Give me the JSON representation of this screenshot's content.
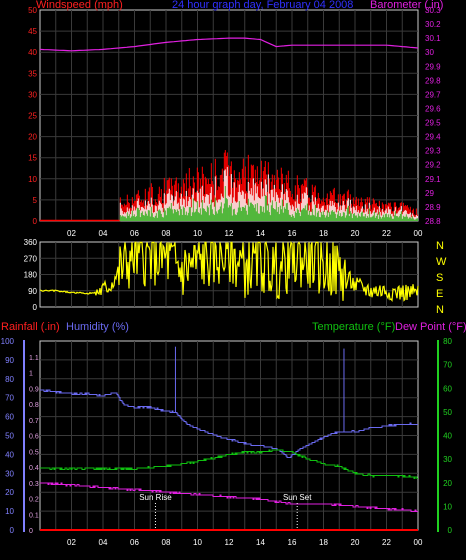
{
  "header": {
    "left_label": "Windspeed (mph)",
    "center_label": "24 hour graph day,  February 04 2008",
    "right_label": "Barometer (.in)"
  },
  "middle": {
    "compass": [
      "N",
      "W",
      "S",
      "E",
      "N"
    ]
  },
  "bottom": {
    "rainfall_label": "Rainfall (.in)",
    "humidity_label": "Humidity (%)",
    "temperature_label": "Temperature (°F)",
    "dewpoint_label": "Dew Point (°F)",
    "sunrise_label": "Sun Rise",
    "sunset_label": "Sun Set"
  },
  "colors": {
    "wind_red": "#ff0000",
    "wind_gust": "#ffffff",
    "wind_avg": "#20c020",
    "barometer": "#e020e0",
    "direction": "#ffff00",
    "rainfall": "#ff0000",
    "humidity": "#6a6af0",
    "temperature": "#10c010",
    "dewpoint": "#e020e0",
    "title_blue": "#3030ff",
    "grid": "#3a3a3a",
    "axis_left": "#8080ff",
    "axis_right_green": "#20d020",
    "sun_marker": "#ffffff"
  },
  "chart_data": [
    {
      "type": "area",
      "title": "Windspeed (mph)",
      "xlabel": "",
      "ylabel": "Windspeed (mph)",
      "xlim": [
        0,
        24
      ],
      "x_ticks": [
        "02",
        "04",
        "06",
        "08",
        "10",
        "12",
        "14",
        "16",
        "18",
        "20",
        "22",
        "00"
      ],
      "ylim": [
        0,
        50
      ],
      "y_ticks": [
        0,
        5,
        10,
        15,
        20,
        25,
        30,
        35,
        40,
        45,
        50
      ],
      "grid": true,
      "series": [
        {
          "name": "Windspeed (mph)",
          "x": [
            0,
            5,
            5.1,
            6,
            7,
            8,
            9,
            10,
            11,
            12,
            13,
            14,
            15,
            16,
            17,
            18,
            19,
            20,
            21,
            22,
            23,
            24
          ],
          "values": [
            0,
            0,
            4,
            5,
            6,
            7,
            8,
            9,
            10,
            12,
            11,
            10,
            9,
            8,
            7,
            6,
            5,
            5,
            4,
            3,
            3,
            2
          ]
        }
      ]
    },
    {
      "type": "line",
      "title": "Barometer (.in)",
      "ylabel": "Barometer (.in)",
      "xlim": [
        0,
        24
      ],
      "ylim": [
        28.8,
        30.3
      ],
      "y_ticks": [
        28.8,
        28.9,
        29.0,
        29.1,
        29.2,
        29.3,
        29.4,
        29.5,
        29.6,
        29.7,
        29.8,
        29.9,
        30.0,
        30.1,
        30.2,
        30.3
      ],
      "series": [
        {
          "name": "Barometer (.in)",
          "x": [
            0,
            2,
            4,
            6,
            8,
            9,
            10,
            12,
            13,
            14,
            15,
            16,
            18,
            20,
            22,
            24
          ],
          "values": [
            30.02,
            30.01,
            30.02,
            30.04,
            30.07,
            30.08,
            30.09,
            30.1,
            30.1,
            30.09,
            30.04,
            30.05,
            30.05,
            30.05,
            30.05,
            30.03
          ]
        }
      ]
    },
    {
      "type": "line",
      "title": "Wind Direction",
      "xlim": [
        0,
        24
      ],
      "ylim": [
        0,
        360
      ],
      "y_ticks": [
        0,
        90,
        180,
        270,
        360
      ],
      "series": [
        {
          "name": "Wind Direction",
          "x": [
            0,
            1,
            2,
            3,
            3.5,
            4,
            4.5,
            5,
            6,
            7,
            8,
            9,
            10,
            11,
            12,
            13,
            14,
            15,
            16,
            17,
            18,
            19,
            20,
            21,
            22,
            23,
            24
          ],
          "values": [
            90,
            90,
            80,
            75,
            80,
            95,
            120,
            200,
            290,
            280,
            270,
            200,
            250,
            270,
            300,
            220,
            250,
            200,
            260,
            270,
            230,
            200,
            120,
            90,
            90,
            80,
            80
          ]
        }
      ]
    },
    {
      "type": "line",
      "title": "",
      "xlabel": "",
      "xlim": [
        0,
        24
      ],
      "x_ticks": [
        "02",
        "04",
        "06",
        "08",
        "10",
        "12",
        "14",
        "16",
        "18",
        "20",
        "22",
        "00"
      ],
      "grid": true,
      "axes": {
        "rainfall": {
          "label": "Rainfall (.in)",
          "ylim": [
            0,
            1.2
          ],
          "ticks": [
            0,
            0.1,
            0.2,
            0.3,
            0.4,
            0.5,
            0.6,
            0.7,
            0.8,
            0.9,
            1.0,
            1.1
          ]
        },
        "humidity": {
          "label": "Humidity (%)",
          "ylim": [
            0,
            100
          ],
          "ticks": [
            0,
            10,
            20,
            30,
            40,
            50,
            60,
            70,
            80,
            90,
            100
          ]
        },
        "temperature": {
          "label": "Temperature (°F)",
          "ylim": [
            0,
            80
          ],
          "ticks": [
            0,
            10,
            20,
            30,
            40,
            50,
            60,
            70,
            80
          ]
        }
      },
      "series": [
        {
          "name": "Humidity (%)",
          "axis": "humidity",
          "x": [
            0,
            1,
            2,
            3,
            4,
            4.8,
            5.3,
            6,
            7,
            7.5,
            8,
            8.6,
            9.5,
            10.5,
            11.5,
            12.5,
            13.5,
            14.5,
            15.2,
            15.8,
            16.5,
            17.5,
            18.5,
            19.3,
            20,
            21,
            22,
            23,
            24
          ],
          "values": [
            74,
            73,
            72,
            72,
            71,
            73,
            66,
            65,
            65,
            64,
            63,
            62,
            55,
            52,
            49,
            47,
            45,
            44,
            42,
            38,
            43,
            47,
            51,
            52,
            52,
            54,
            55,
            56,
            56
          ]
        },
        {
          "name": "Temperature (°F)",
          "axis": "temperature",
          "x": [
            0,
            2,
            4,
            6,
            8,
            10,
            12,
            13,
            14,
            15,
            16,
            17,
            18,
            19,
            20,
            21,
            22,
            23,
            24
          ],
          "values": [
            26,
            26,
            26,
            26,
            27,
            29,
            32,
            33,
            33,
            34,
            33,
            30,
            28,
            27,
            24,
            23,
            23,
            23,
            22
          ]
        },
        {
          "name": "Dew Point (°F)",
          "axis": "temperature",
          "x": [
            0,
            2,
            4,
            6,
            8,
            10,
            12,
            14,
            15,
            16,
            18,
            20,
            22,
            24
          ],
          "values": [
            20,
            19,
            18,
            17,
            16,
            15,
            14,
            13,
            12,
            11,
            11,
            10,
            9,
            8
          ]
        },
        {
          "name": "Rainfall (.in)",
          "axis": "rainfall",
          "x": [
            0,
            24
          ],
          "values": [
            0,
            0
          ]
        }
      ],
      "annotations": [
        {
          "label": "Sun Rise",
          "x": 7.33
        },
        {
          "label": "Sun Set",
          "x": 16.33
        }
      ]
    }
  ]
}
